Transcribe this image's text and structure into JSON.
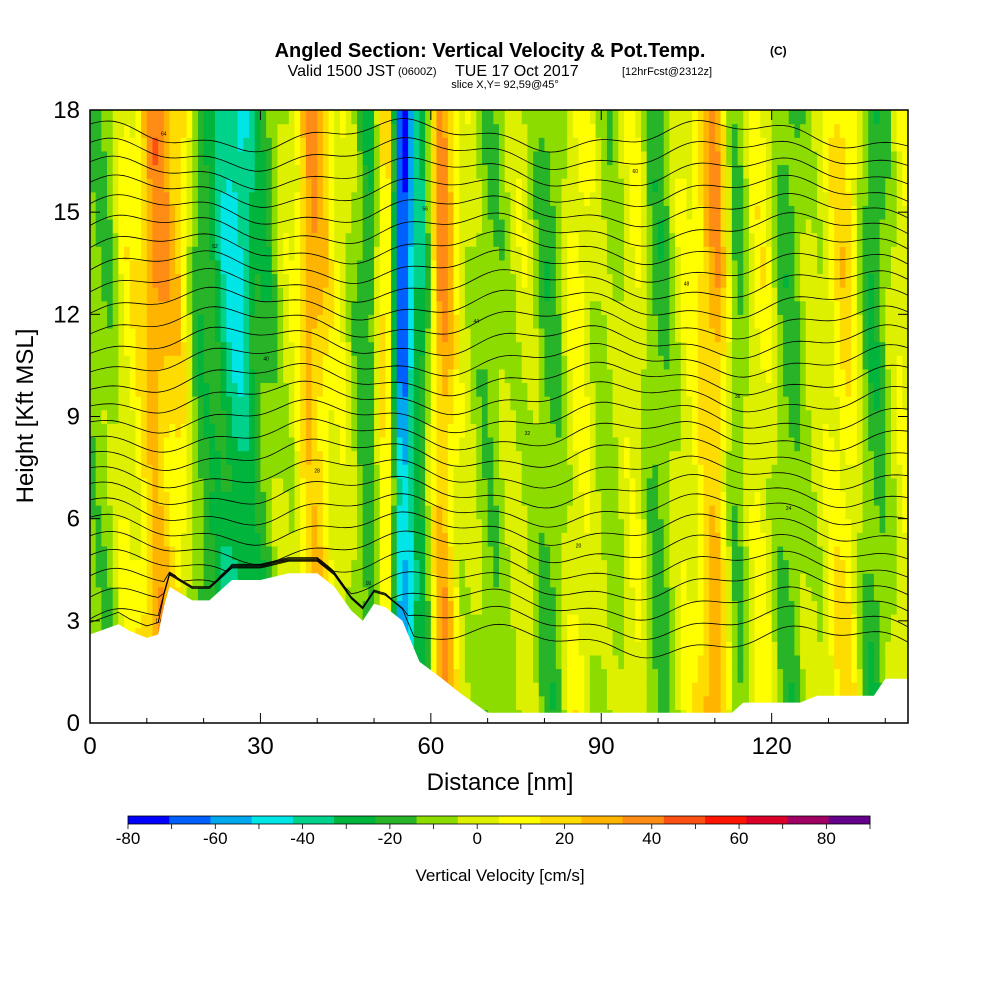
{
  "header": {
    "title": "Angled Section: Vertical Velocity & Pot.Temp.",
    "title_unit": "(C)",
    "valid_main": "Valid 1500 JST",
    "valid_utc": "(0600Z)",
    "valid_date": "TUE 17 Oct 2017",
    "forecast": "[12hrFcst@2312z]",
    "slice": "slice X,Y= 92,59@45°"
  },
  "chart_data": {
    "type": "heatmap",
    "xlabel": "Distance [nm]",
    "ylabel": "Height [Kft MSL]",
    "xlim": [
      0,
      144
    ],
    "ylim": [
      0,
      18
    ],
    "x_ticks": [
      0,
      30,
      60,
      90,
      120
    ],
    "y_ticks": [
      0,
      3,
      6,
      9,
      12,
      15,
      18
    ],
    "colorbar": {
      "label": "Vertical Velocity [cm/s]",
      "range": [
        -80,
        90
      ],
      "step": 10,
      "tick_values": [
        -80,
        -60,
        -40,
        -20,
        0,
        20,
        40,
        60,
        80
      ],
      "tick_labels": [
        "-80",
        "-60",
        "-40",
        "-20",
        "0",
        "20",
        "40",
        "60",
        "80"
      ],
      "colors": [
        "#0000ff",
        "#0060ff",
        "#00a8f0",
        "#00e6e6",
        "#00d28c",
        "#00b43c",
        "#28b428",
        "#8cdc00",
        "#dcf000",
        "#ffff00",
        "#ffdc00",
        "#ffb400",
        "#ff8c14",
        "#ff5014",
        "#ff1400",
        "#dc0028",
        "#a00064",
        "#64008c"
      ]
    },
    "columns": [
      {
        "x": 3,
        "w": -8
      },
      {
        "x": 7,
        "w": 15
      },
      {
        "x": 12,
        "w": 45
      },
      {
        "x": 15,
        "w": 30
      },
      {
        "x": 20,
        "w": -20
      },
      {
        "x": 26,
        "w": -45
      },
      {
        "x": 30,
        "w": -20
      },
      {
        "x": 35,
        "w": 5
      },
      {
        "x": 39,
        "w": 40
      },
      {
        "x": 44,
        "w": 10
      },
      {
        "x": 49,
        "w": -20
      },
      {
        "x": 52,
        "w": 25
      },
      {
        "x": 55,
        "w": -75
      },
      {
        "x": 58,
        "w": -30
      },
      {
        "x": 62,
        "w": 45
      },
      {
        "x": 66,
        "w": 5
      },
      {
        "x": 70,
        "w": -10
      },
      {
        "x": 76,
        "w": 5
      },
      {
        "x": 81,
        "w": -15
      },
      {
        "x": 86,
        "w": 15
      },
      {
        "x": 91,
        "w": -5
      },
      {
        "x": 96,
        "w": 10
      },
      {
        "x": 100,
        "w": -15
      },
      {
        "x": 105,
        "w": 10
      },
      {
        "x": 110,
        "w": 40
      },
      {
        "x": 114,
        "w": -10
      },
      {
        "x": 118,
        "w": 15
      },
      {
        "x": 123,
        "w": -15
      },
      {
        "x": 128,
        "w": 5
      },
      {
        "x": 133,
        "w": 25
      },
      {
        "x": 138,
        "w": -20
      },
      {
        "x": 143,
        "w": 10
      }
    ],
    "terrain": [
      [
        0,
        2.6
      ],
      [
        5,
        2.9
      ],
      [
        7,
        2.7
      ],
      [
        10,
        2.5
      ],
      [
        12,
        2.6
      ],
      [
        13,
        3.4
      ],
      [
        14,
        4.0
      ],
      [
        16,
        3.8
      ],
      [
        18,
        3.6
      ],
      [
        21,
        3.6
      ],
      [
        25,
        4.2
      ],
      [
        30,
        4.2
      ],
      [
        35,
        4.4
      ],
      [
        40,
        4.4
      ],
      [
        43,
        4.0
      ],
      [
        46,
        3.3
      ],
      [
        48,
        3.0
      ],
      [
        50,
        3.5
      ],
      [
        52,
        3.4
      ],
      [
        55,
        3.0
      ],
      [
        58,
        1.8
      ],
      [
        62,
        1.3
      ],
      [
        65,
        0.9
      ],
      [
        70,
        0.3
      ],
      [
        90,
        0.3
      ],
      [
        105,
        0.3
      ],
      [
        113,
        0.3
      ],
      [
        115,
        0.6
      ],
      [
        125,
        0.6
      ],
      [
        128,
        0.8
      ],
      [
        138,
        0.8
      ],
      [
        140,
        1.3
      ],
      [
        144,
        1.3
      ]
    ],
    "theta_contours": {
      "base_km_ft": 2.4,
      "spacing_kft": 0.55,
      "count": 28,
      "labeled_values": [
        "10",
        "16",
        "20",
        "24",
        "28",
        "32",
        "36",
        "40",
        "44",
        "48",
        "52",
        "56",
        "60",
        "64"
      ]
    }
  }
}
